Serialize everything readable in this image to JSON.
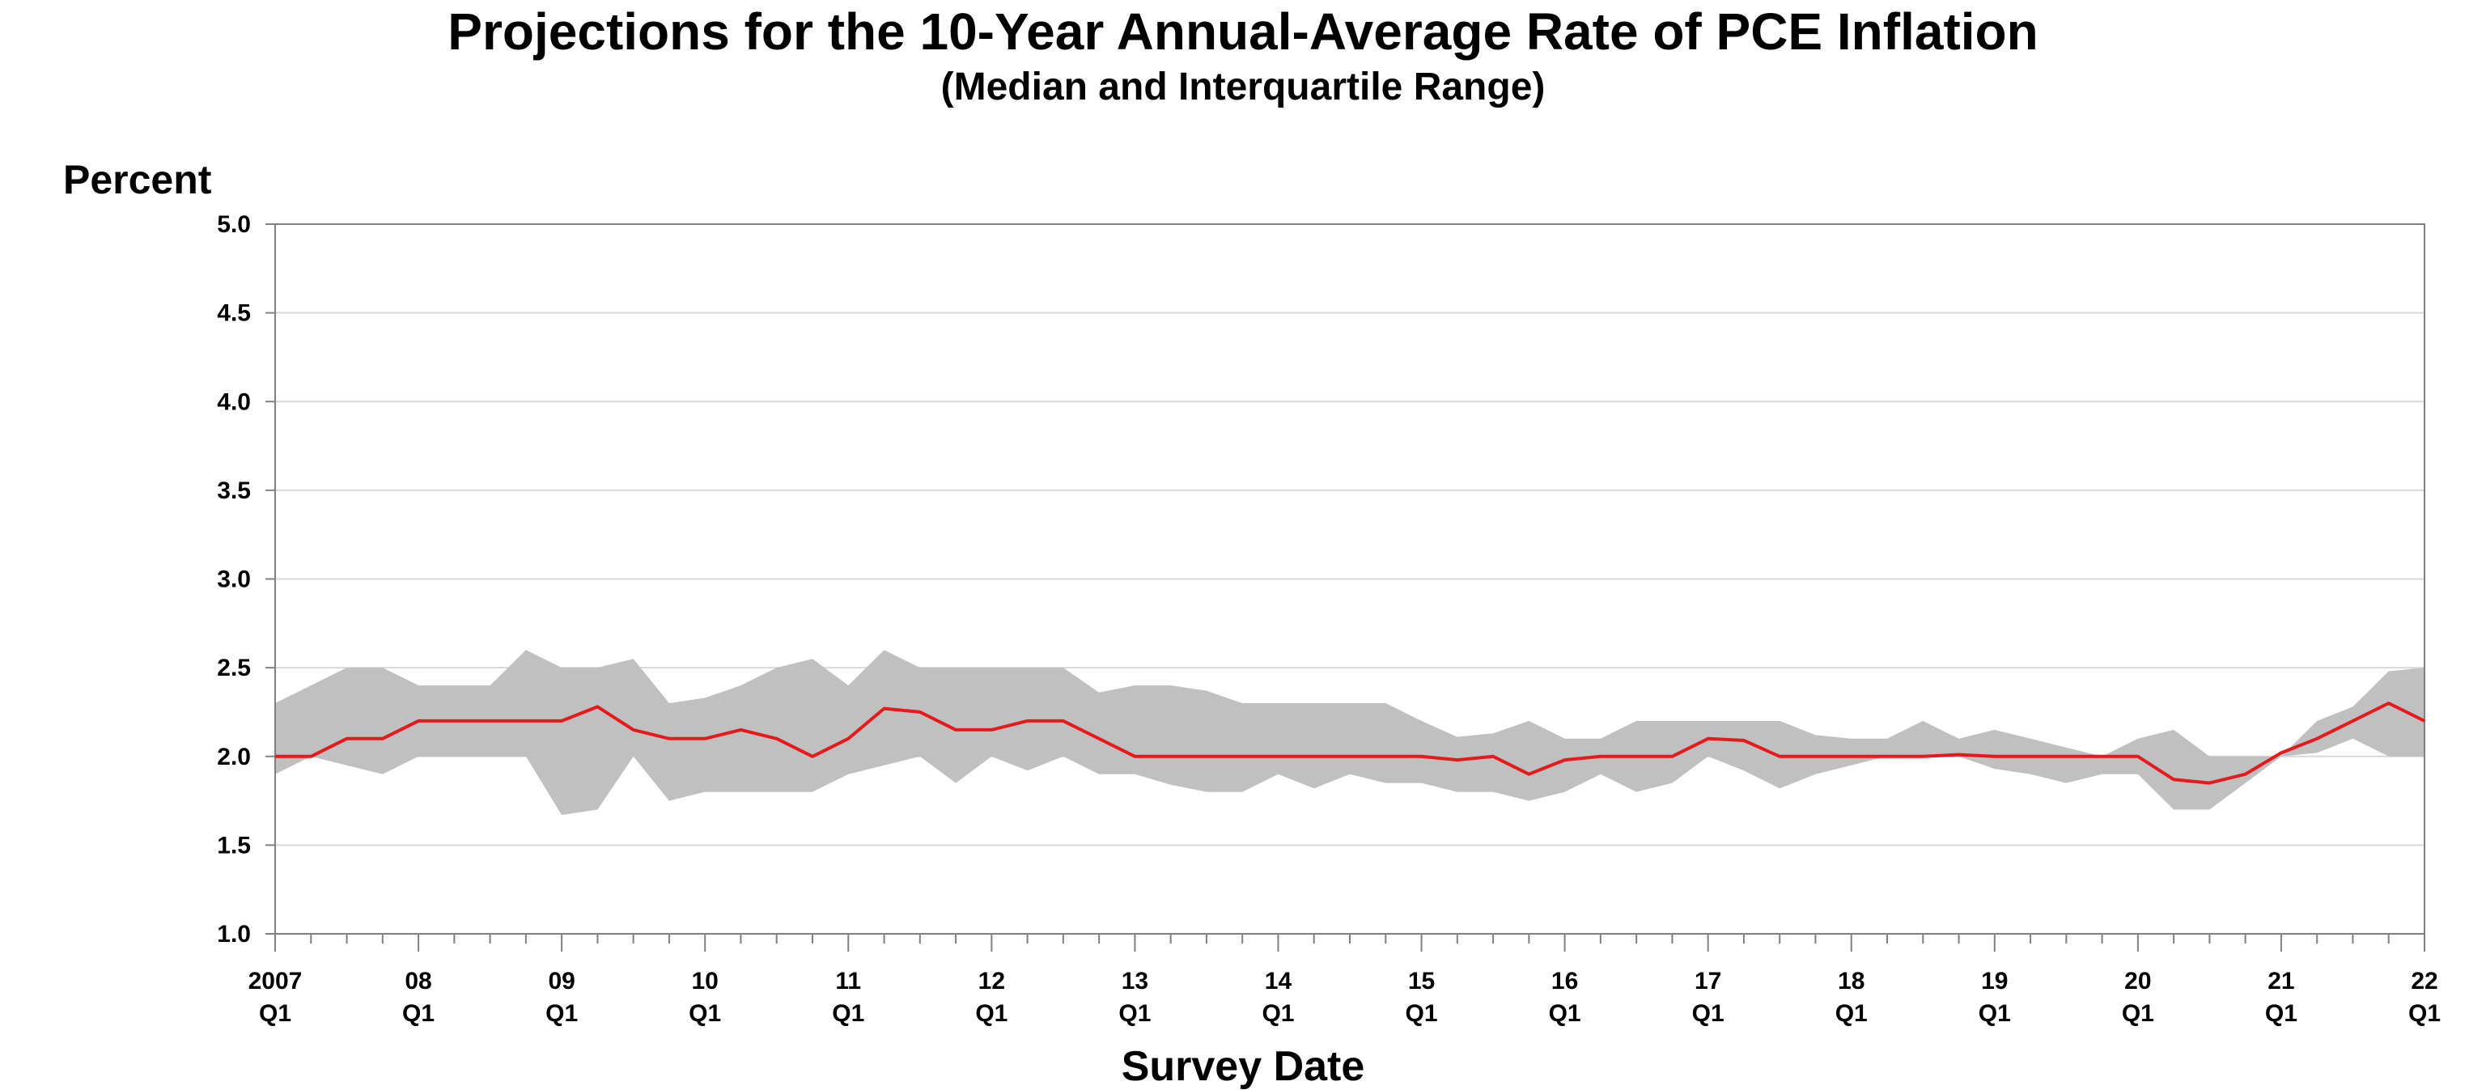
{
  "chart_data": {
    "type": "area",
    "title": "Projections for the 10-Year Annual-Average Rate of PCE Inflation",
    "subtitle": "(Median and Interquartile Range)",
    "ylabel": "Percent",
    "xlabel": "Survey Date",
    "ylim": [
      1.0,
      5.0
    ],
    "yticks": [
      "1.0",
      "1.5",
      "2.0",
      "2.5",
      "3.0",
      "3.5",
      "4.0",
      "4.5",
      "5.0"
    ],
    "xlim": [
      "2007 Q1",
      "2022 Q1"
    ],
    "xtick_labels": [
      {
        "year": "2007",
        "quarter": "Q1"
      },
      {
        "year": "08",
        "quarter": "Q1"
      },
      {
        "year": "09",
        "quarter": "Q1"
      },
      {
        "year": "10",
        "quarter": "Q1"
      },
      {
        "year": "11",
        "quarter": "Q1"
      },
      {
        "year": "12",
        "quarter": "Q1"
      },
      {
        "year": "13",
        "quarter": "Q1"
      },
      {
        "year": "14",
        "quarter": "Q1"
      },
      {
        "year": "15",
        "quarter": "Q1"
      },
      {
        "year": "16",
        "quarter": "Q1"
      },
      {
        "year": "17",
        "quarter": "Q1"
      },
      {
        "year": "18",
        "quarter": "Q1"
      },
      {
        "year": "19",
        "quarter": "Q1"
      },
      {
        "year": "20",
        "quarter": "Q1"
      },
      {
        "year": "21",
        "quarter": "Q1"
      },
      {
        "year": "22",
        "quarter": "Q1"
      }
    ],
    "grid": true,
    "legend": "none",
    "colors": {
      "median": "#e41a1c",
      "range": "#c0c0c0",
      "grid": "#d9d9d9",
      "axis": "#808080"
    },
    "x": [
      "2007 Q1",
      "2007 Q2",
      "2007 Q3",
      "2007 Q4",
      "2008 Q1",
      "2008 Q2",
      "2008 Q3",
      "2008 Q4",
      "2009 Q1",
      "2009 Q2",
      "2009 Q3",
      "2009 Q4",
      "2010 Q1",
      "2010 Q2",
      "2010 Q3",
      "2010 Q4",
      "2011 Q1",
      "2011 Q2",
      "2011 Q3",
      "2011 Q4",
      "2012 Q1",
      "2012 Q2",
      "2012 Q3",
      "2012 Q4",
      "2013 Q1",
      "2013 Q2",
      "2013 Q3",
      "2013 Q4",
      "2014 Q1",
      "2014 Q2",
      "2014 Q3",
      "2014 Q4",
      "2015 Q1",
      "2015 Q2",
      "2015 Q3",
      "2015 Q4",
      "2016 Q1",
      "2016 Q2",
      "2016 Q3",
      "2016 Q4",
      "2017 Q1",
      "2017 Q2",
      "2017 Q3",
      "2017 Q4",
      "2018 Q1",
      "2018 Q2",
      "2018 Q3",
      "2018 Q4",
      "2019 Q1",
      "2019 Q2",
      "2019 Q3",
      "2019 Q4",
      "2020 Q1",
      "2020 Q2",
      "2020 Q3",
      "2020 Q4",
      "2021 Q1",
      "2021 Q2",
      "2021 Q3",
      "2021 Q4",
      "2022 Q1"
    ],
    "series": [
      {
        "values": [
          2.0,
          2.0,
          2.1,
          2.1,
          2.2,
          2.2,
          2.2,
          2.2,
          2.2,
          2.28,
          2.15,
          2.1,
          2.1,
          2.15,
          2.1,
          2.0,
          2.1,
          2.27,
          2.25,
          2.15,
          2.15,
          2.2,
          2.2,
          2.1,
          2.0,
          2.0,
          2.0,
          2.0,
          2.0,
          2.0,
          2.0,
          2.0,
          2.0,
          1.98,
          2.0,
          1.9,
          1.98,
          2.0,
          2.0,
          2.0,
          2.1,
          2.09,
          2.0,
          2.0,
          2.0,
          2.0,
          2.0,
          2.01,
          2.0,
          2.0,
          2.0,
          2.0,
          2.0,
          1.87,
          1.85,
          1.9,
          2.02,
          2.1,
          2.2,
          2.3,
          2.2
        ]
      },
      {
        "values": [
          2.3,
          2.4,
          2.5,
          2.5,
          2.4,
          2.4,
          2.4,
          2.6,
          2.5,
          2.5,
          2.55,
          2.3,
          2.33,
          2.4,
          2.5,
          2.55,
          2.4,
          2.6,
          2.5,
          2.5,
          2.5,
          2.5,
          2.5,
          2.36,
          2.4,
          2.4,
          2.37,
          2.3,
          2.3,
          2.3,
          2.3,
          2.3,
          2.2,
          2.11,
          2.13,
          2.2,
          2.1,
          2.1,
          2.2,
          2.2,
          2.2,
          2.2,
          2.2,
          2.12,
          2.1,
          2.1,
          2.2,
          2.1,
          2.15,
          2.1,
          2.05,
          2.0,
          2.1,
          2.15,
          2.0,
          2.0,
          2.0,
          2.2,
          2.28,
          2.48,
          2.5
        ]
      },
      {
        "values": [
          1.9,
          2.0,
          1.95,
          1.9,
          2.0,
          2.0,
          2.0,
          2.0,
          1.67,
          1.7,
          2.0,
          1.75,
          1.8,
          1.8,
          1.8,
          1.8,
          1.9,
          1.95,
          2.0,
          1.85,
          2.0,
          1.92,
          2.0,
          1.9,
          1.9,
          1.84,
          1.8,
          1.8,
          1.9,
          1.82,
          1.9,
          1.85,
          1.85,
          1.8,
          1.8,
          1.75,
          1.8,
          1.9,
          1.8,
          1.85,
          2.0,
          1.92,
          1.82,
          1.9,
          1.95,
          2.0,
          2.0,
          2.0,
          1.93,
          1.9,
          1.85,
          1.9,
          1.9,
          1.7,
          1.7,
          1.85,
          2.0,
          2.02,
          2.1,
          2.0,
          2.0
        ]
      }
    ]
  }
}
